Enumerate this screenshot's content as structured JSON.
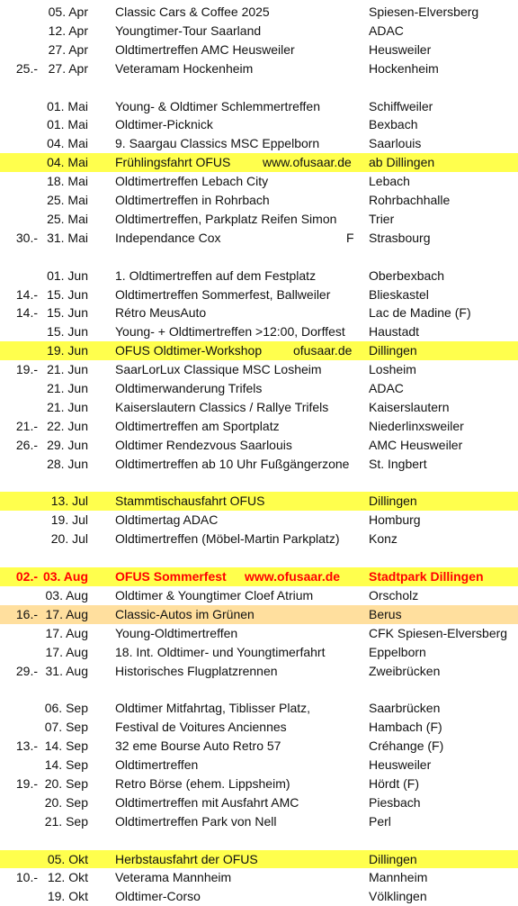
{
  "colors": {
    "highlight_yellow": "#ffff4d",
    "highlight_peach": "#ffdf9e",
    "accent_red": "#ff0000"
  },
  "events": [
    {
      "start": "",
      "date": "05. Apr",
      "event": "Classic Cars & Coffee 2025",
      "place": "Spiesen-Elversberg"
    },
    {
      "start": "",
      "date": "12. Apr",
      "event": "Youngtimer-Tour Saarland",
      "place": "ADAC"
    },
    {
      "start": "",
      "date": "27. Apr",
      "event": "Oldtimertreffen AMC Heusweiler",
      "place": "Heusweiler"
    },
    {
      "start": "25.-",
      "date": "27. Apr",
      "event": "Veteramam Hockenheim",
      "place": "Hockenheim"
    },
    {
      "spacer": true
    },
    {
      "start": "",
      "date": "01. Mai",
      "event": "Young- & Oldtimer Schlemmertreffen",
      "place": "Schiffweiler"
    },
    {
      "start": "",
      "date": "01. Mai",
      "event": "Oldtimer-Picknick",
      "place": "Bexbach"
    },
    {
      "start": "",
      "date": "04. Mai",
      "event": " 9. Saargau Classics MSC Eppelborn",
      "place": "Saarlouis"
    },
    {
      "start": "",
      "date": "04. Mai",
      "event": "Frühlingsfahrt OFUS",
      "web": "www.ofusaar.de",
      "place": "ab Dillingen",
      "hl": "yellow"
    },
    {
      "start": "",
      "date": "18. Mai",
      "event": "Oldtimertreffen Lebach City",
      "place": "Lebach"
    },
    {
      "start": "",
      "date": "25. Mai",
      "event": "Oldtimertreffen in Rohrbach",
      "place": "Rohrbachhalle"
    },
    {
      "start": "",
      "date": "25. Mai",
      "event": "Oldtimertreffen, Parkplatz Reifen Simon",
      "place": "Trier"
    },
    {
      "start": "30.-",
      "date": "31. Mai",
      "event": "Independance Cox",
      "flag": "F",
      "place": "Strasbourg"
    },
    {
      "spacer": true
    },
    {
      "start": "",
      "date": "01. Jun",
      "event": "1. Oldtimertreffen auf dem Festplatz",
      "place": "Oberbexbach"
    },
    {
      "start": "14.-",
      "date": "15. Jun",
      "event": "Oldtimertreffen Sommerfest, Ballweiler",
      "place": "Blieskastel"
    },
    {
      "start": "14.-",
      "date": "15. Jun",
      "event": "Rétro MeusAuto",
      "place": "Lac de Madine  (F)"
    },
    {
      "start": "",
      "date": "15. Jun",
      "event": "Young- + Oldtimertreffen >12:00, Dorffest",
      "place": "Haustadt"
    },
    {
      "start": "",
      "date": "19. Jun",
      "event": "OFUS Oldtimer-Workshop",
      "web": "ofusaar.de",
      "web_left": 326,
      "place": "Dillingen",
      "hl": "yellow"
    },
    {
      "start": "19.-",
      "date": "21. Jun",
      "event": "SaarLorLux Classique MSC Losheim",
      "place": "Losheim"
    },
    {
      "start": "",
      "date": "21. Jun",
      "event": "Oldtimerwanderung Trifels",
      "place": "ADAC"
    },
    {
      "start": "",
      "date": "21. Jun",
      "event": "Kaiserslautern Classics / Rallye Trifels",
      "place": "Kaiserslautern"
    },
    {
      "start": "21.-",
      "date": "22. Jun",
      "event": "Oldtimertreffen am Sportplatz",
      "place": "Niederlinxsweiler"
    },
    {
      "start": "26.-",
      "date": "29. Jun",
      "event": "Oldtimer Rendezvous Saarlouis",
      "place": "AMC Heusweiler"
    },
    {
      "start": "",
      "date": "28. Jun",
      "event": "Oldtimertreffen ab 10 Uhr Fußgängerzone",
      "place": "St. Ingbert"
    },
    {
      "spacer": true
    },
    {
      "start": "",
      "date": "13. Jul",
      "event": "Stammtischausfahrt OFUS",
      "place": "Dillingen",
      "hl": "yellow"
    },
    {
      "start": "",
      "date": "19. Jul",
      "event": "Oldtimertag  ADAC",
      "place": "Homburg"
    },
    {
      "start": "",
      "date": "20. Jul",
      "event": "Oldtimertreffen (Möbel-Martin Parkplatz)",
      "place": "Konz"
    },
    {
      "spacer": true
    },
    {
      "start": "02.-",
      "date": "03. Aug",
      "event": "OFUS Sommerfest",
      "web": "www.ofusaar.de",
      "web_left": 272,
      "place": "Stadtpark Dillingen",
      "hl": "yellow",
      "red": true
    },
    {
      "start": "",
      "date": "03. Aug",
      "event": "Oldtimer & Youngtimer Cloef Atrium",
      "place": "Orscholz"
    },
    {
      "start": "16.-",
      "date": "17. Aug",
      "event": "Classic-Autos im Grünen",
      "place": "Berus",
      "hl": "peach"
    },
    {
      "start": "",
      "date": "17. Aug",
      "event": "Young-Oldtimertreffen",
      "place": "CFK Spiesen-Elversberg"
    },
    {
      "start": "",
      "date": "17. Aug",
      "event": "18. Int. Oldtimer- und Youngtimerfahrt",
      "place": "Eppelborn"
    },
    {
      "start": "29.-",
      "date": "31. Aug",
      "event": "Historisches Flugplatzrennen",
      "place": "Zweibrücken"
    },
    {
      "spacer": true
    },
    {
      "start": "",
      "date": "06. Sep",
      "event": "Oldtimer Mitfahrtag, Tiblisser Platz,",
      "place": "Saarbrücken"
    },
    {
      "start": "",
      "date": "07. Sep",
      "event": "Festival de Voitures Anciennes",
      "place": "Hambach (F)"
    },
    {
      "start": "13.-",
      "date": "14. Sep",
      "event": "32 eme Bourse Auto Retro 57",
      "place": "Créhange (F)"
    },
    {
      "start": "",
      "date": "14. Sep",
      "event": "Oldtimertreffen",
      "place": "Heusweiler"
    },
    {
      "start": "19.-",
      "date": "20. Sep",
      "event": "Retro Börse (ehem. Lippsheim)",
      "place": "Hördt (F)"
    },
    {
      "start": "",
      "date": "20. Sep",
      "event": "Oldtimertreffen mit Ausfahrt AMC",
      "place": "Piesbach"
    },
    {
      "start": "",
      "date": "21. Sep",
      "event": "Oldtimertreffen Park von Nell",
      "place": "Perl"
    },
    {
      "spacer": true
    },
    {
      "start": "",
      "date": "05. Okt",
      "event": "Herbstausfahrt der OFUS",
      "place": "Dillingen",
      "hl": "yellow"
    },
    {
      "start": "10.-",
      "date": "12. Okt",
      "event": "Veterama Mannheim",
      "place": "Mannheim"
    },
    {
      "start": "",
      "date": "19. Okt",
      "event": "Oldtimer-Corso",
      "place": "Völklingen"
    }
  ]
}
